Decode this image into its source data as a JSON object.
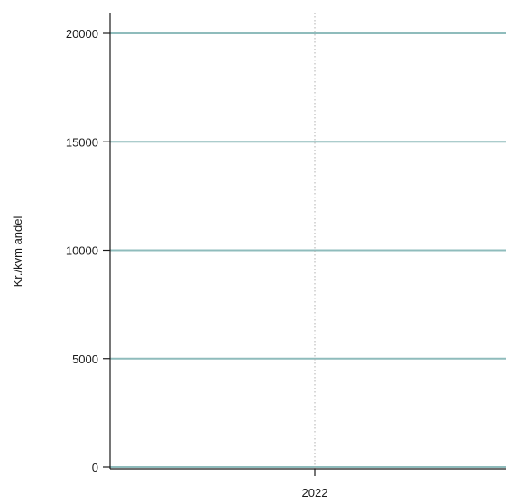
{
  "chart_data": {
    "type": "line",
    "title": "",
    "xlabel": "",
    "ylabel": "Kr./kvm andel",
    "x_ticks": [
      "2022"
    ],
    "y_ticks": [
      0,
      5000,
      10000,
      15000,
      20000
    ],
    "y_tick_labels": [
      "0",
      "5000",
      "10000",
      "15000",
      "20000"
    ],
    "ylim": [
      0,
      20000
    ],
    "grid": {
      "y": true,
      "x": true,
      "y_color": "#8fbcbc",
      "x_color": "#b0b0b0",
      "x_style": "dotted"
    },
    "series": [],
    "colors": {
      "axis": "#1a1a1a",
      "gridline": "#8fbcbc",
      "text": "#1a1a1a"
    }
  }
}
